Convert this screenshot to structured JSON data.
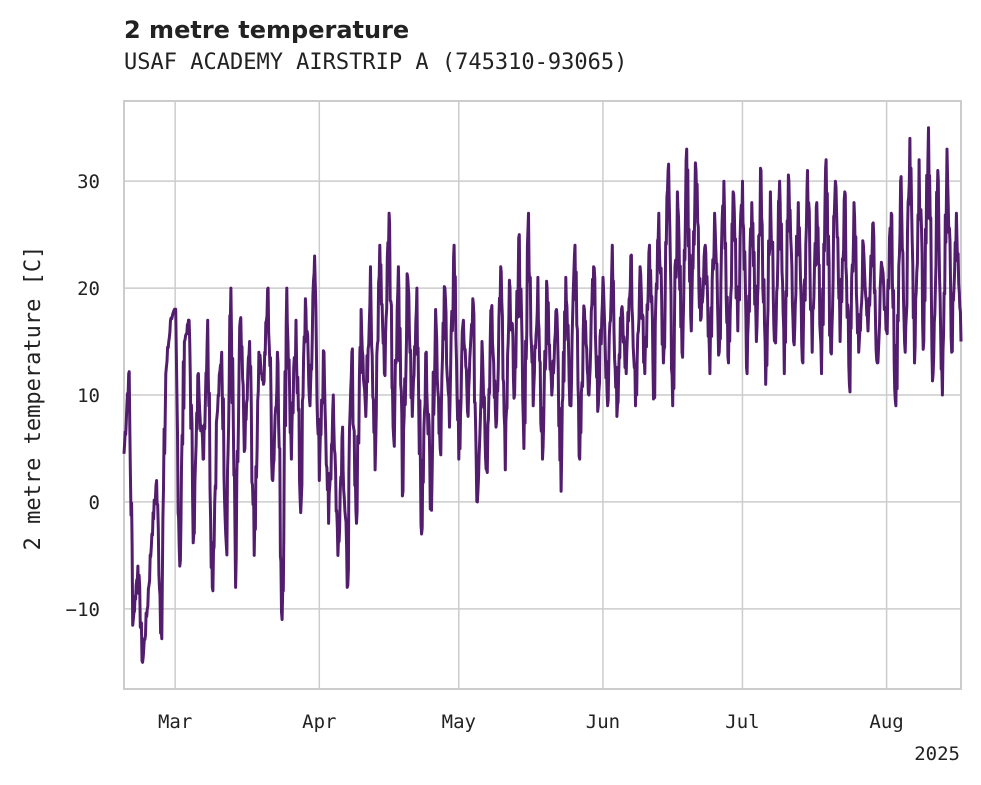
{
  "header": {
    "title": "2 metre temperature",
    "subtitle": "USAF ACADEMY AIRSTRIP A (745310-93065)"
  },
  "colors": {
    "series": "#531d6e",
    "grid": "#cccccc",
    "axis": "#cccccc"
  },
  "chart_data": {
    "type": "line",
    "title": "2 metre temperature",
    "subtitle": "USAF ACADEMY AIRSTRIP A (745310-93065)",
    "xlabel": "",
    "ylabel": "2 metre temperature [C]",
    "x_range": [
      "2025-02-18",
      "2025-08-17"
    ],
    "ylim": [
      -17.5,
      37.5
    ],
    "grid": true,
    "x_ticks": [
      {
        "date": "2025-03-01",
        "label": "Mar"
      },
      {
        "date": "2025-04-01",
        "label": "Apr"
      },
      {
        "date": "2025-05-01",
        "label": "May"
      },
      {
        "date": "2025-06-01",
        "label": "Jun"
      },
      {
        "date": "2025-07-01",
        "label": "Jul"
      },
      {
        "date": "2025-08-01",
        "label": "Aug"
      }
    ],
    "x_offset_label": "2025",
    "y_ticks": [
      -10,
      0,
      10,
      20,
      30
    ],
    "series": [
      {
        "resolution": "3-hourly",
        "points": [
          [
            "2025-02-18",
            4.5
          ],
          [
            "2025-02-19",
            12
          ],
          [
            "2025-02-20",
            -11
          ],
          [
            "2025-02-21",
            -6
          ],
          [
            "2025-02-22",
            -15
          ],
          [
            "2025-02-23",
            -10
          ],
          [
            "2025-02-24",
            -3
          ],
          [
            "2025-02-25",
            2
          ],
          [
            "2025-02-26",
            -12
          ],
          [
            "2025-02-27",
            12
          ],
          [
            "2025-02-28",
            17
          ],
          [
            "2025-03-01",
            18
          ],
          [
            "2025-03-02",
            -6
          ],
          [
            "2025-03-03",
            15
          ],
          [
            "2025-03-04",
            17
          ],
          [
            "2025-03-05",
            -3
          ],
          [
            "2025-03-06",
            12
          ],
          [
            "2025-03-07",
            4
          ],
          [
            "2025-03-08",
            17
          ],
          [
            "2025-03-09",
            -8
          ],
          [
            "2025-03-10",
            8
          ],
          [
            "2025-03-11",
            14
          ],
          [
            "2025-03-12",
            -4
          ],
          [
            "2025-03-13",
            20
          ],
          [
            "2025-03-14",
            -8
          ],
          [
            "2025-03-15",
            17
          ],
          [
            "2025-03-16",
            5
          ],
          [
            "2025-03-17",
            15
          ],
          [
            "2025-03-18",
            -5
          ],
          [
            "2025-03-19",
            14
          ],
          [
            "2025-03-20",
            11
          ],
          [
            "2025-03-21",
            20
          ],
          [
            "2025-03-22",
            2
          ],
          [
            "2025-03-23",
            14
          ],
          [
            "2025-03-24",
            -11
          ],
          [
            "2025-03-25",
            20
          ],
          [
            "2025-03-26",
            4
          ],
          [
            "2025-03-27",
            17
          ],
          [
            "2025-03-28",
            -1
          ],
          [
            "2025-03-29",
            19
          ],
          [
            "2025-03-30",
            9
          ],
          [
            "2025-03-31",
            23
          ],
          [
            "2025-04-01",
            2
          ],
          [
            "2025-04-02",
            14
          ],
          [
            "2025-04-03",
            -2
          ],
          [
            "2025-04-04",
            10
          ],
          [
            "2025-04-05",
            -5
          ],
          [
            "2025-04-06",
            7
          ],
          [
            "2025-04-07",
            -8
          ],
          [
            "2025-04-08",
            14
          ],
          [
            "2025-04-09",
            -2
          ],
          [
            "2025-04-10",
            18
          ],
          [
            "2025-04-11",
            8
          ],
          [
            "2025-04-12",
            22
          ],
          [
            "2025-04-13",
            3
          ],
          [
            "2025-04-14",
            24
          ],
          [
            "2025-04-15",
            12
          ],
          [
            "2025-04-16",
            27
          ],
          [
            "2025-04-17",
            6
          ],
          [
            "2025-04-18",
            22
          ],
          [
            "2025-04-19",
            1
          ],
          [
            "2025-04-20",
            21
          ],
          [
            "2025-04-21",
            8
          ],
          [
            "2025-04-22",
            20
          ],
          [
            "2025-04-23",
            -3
          ],
          [
            "2025-04-24",
            14
          ],
          [
            "2025-04-25",
            0
          ],
          [
            "2025-04-26",
            18
          ],
          [
            "2025-04-27",
            5
          ],
          [
            "2025-04-28",
            20
          ],
          [
            "2025-04-29",
            7
          ],
          [
            "2025-04-30",
            24
          ],
          [
            "2025-05-01",
            4
          ],
          [
            "2025-05-02",
            17
          ],
          [
            "2025-05-03",
            8
          ],
          [
            "2025-05-04",
            19
          ],
          [
            "2025-05-05",
            0
          ],
          [
            "2025-05-06",
            15
          ],
          [
            "2025-05-07",
            3
          ],
          [
            "2025-05-08",
            18
          ],
          [
            "2025-05-09",
            7
          ],
          [
            "2025-05-10",
            22
          ],
          [
            "2025-05-11",
            3
          ],
          [
            "2025-05-12",
            20
          ],
          [
            "2025-05-13",
            10
          ],
          [
            "2025-05-14",
            25
          ],
          [
            "2025-05-15",
            5
          ],
          [
            "2025-05-16",
            27
          ],
          [
            "2025-05-17",
            9
          ],
          [
            "2025-05-18",
            21
          ],
          [
            "2025-05-19",
            4
          ],
          [
            "2025-05-20",
            20
          ],
          [
            "2025-05-21",
            10
          ],
          [
            "2025-05-22",
            18
          ],
          [
            "2025-05-23",
            1
          ],
          [
            "2025-05-24",
            21
          ],
          [
            "2025-05-25",
            9
          ],
          [
            "2025-05-26",
            24
          ],
          [
            "2025-05-27",
            4
          ],
          [
            "2025-05-28",
            18
          ],
          [
            "2025-05-29",
            10
          ],
          [
            "2025-05-30",
            22
          ],
          [
            "2025-05-31",
            9
          ],
          [
            "2025-06-01",
            21
          ],
          [
            "2025-06-02",
            9
          ],
          [
            "2025-06-03",
            24
          ],
          [
            "2025-06-04",
            8
          ],
          [
            "2025-06-05",
            18
          ],
          [
            "2025-06-06",
            12
          ],
          [
            "2025-06-07",
            23
          ],
          [
            "2025-06-08",
            9
          ],
          [
            "2025-06-09",
            22
          ],
          [
            "2025-06-10",
            12
          ],
          [
            "2025-06-11",
            24
          ],
          [
            "2025-06-12",
            10
          ],
          [
            "2025-06-13",
            27
          ],
          [
            "2025-06-14",
            13
          ],
          [
            "2025-06-15",
            31
          ],
          [
            "2025-06-16",
            9
          ],
          [
            "2025-06-17",
            29
          ],
          [
            "2025-06-18",
            14
          ],
          [
            "2025-06-19",
            33
          ],
          [
            "2025-06-20",
            16
          ],
          [
            "2025-06-21",
            31
          ],
          [
            "2025-06-22",
            17
          ],
          [
            "2025-06-23",
            24
          ],
          [
            "2025-06-24",
            12
          ],
          [
            "2025-06-25",
            27
          ],
          [
            "2025-06-26",
            14
          ],
          [
            "2025-06-27",
            30
          ],
          [
            "2025-06-28",
            13
          ],
          [
            "2025-06-29",
            29
          ],
          [
            "2025-06-30",
            16
          ],
          [
            "2025-07-01",
            30
          ],
          [
            "2025-07-02",
            12
          ],
          [
            "2025-07-03",
            28
          ],
          [
            "2025-07-04",
            15
          ],
          [
            "2025-07-05",
            31
          ],
          [
            "2025-07-06",
            11
          ],
          [
            "2025-07-07",
            29
          ],
          [
            "2025-07-08",
            15
          ],
          [
            "2025-07-09",
            30
          ],
          [
            "2025-07-10",
            12
          ],
          [
            "2025-07-11",
            30
          ],
          [
            "2025-07-12",
            15
          ],
          [
            "2025-07-13",
            28
          ],
          [
            "2025-07-14",
            13
          ],
          [
            "2025-07-15",
            31
          ],
          [
            "2025-07-16",
            14
          ],
          [
            "2025-07-17",
            28
          ],
          [
            "2025-07-18",
            12
          ],
          [
            "2025-07-19",
            32
          ],
          [
            "2025-07-20",
            14
          ],
          [
            "2025-07-21",
            30
          ],
          [
            "2025-07-22",
            15
          ],
          [
            "2025-07-23",
            29
          ],
          [
            "2025-07-24",
            11
          ],
          [
            "2025-07-25",
            28
          ],
          [
            "2025-07-26",
            14
          ],
          [
            "2025-07-27",
            24
          ],
          [
            "2025-07-28",
            16
          ],
          [
            "2025-07-29",
            26
          ],
          [
            "2025-07-30",
            13
          ],
          [
            "2025-07-31",
            22
          ],
          [
            "2025-08-01",
            16
          ],
          [
            "2025-08-02",
            27
          ],
          [
            "2025-08-03",
            9
          ],
          [
            "2025-08-04",
            30
          ],
          [
            "2025-08-05",
            14
          ],
          [
            "2025-08-06",
            34
          ],
          [
            "2025-08-07",
            13
          ],
          [
            "2025-08-08",
            32
          ],
          [
            "2025-08-09",
            15
          ],
          [
            "2025-08-10",
            35
          ],
          [
            "2025-08-11",
            12
          ],
          [
            "2025-08-12",
            31
          ],
          [
            "2025-08-13",
            10
          ],
          [
            "2025-08-14",
            33
          ],
          [
            "2025-08-15",
            14
          ],
          [
            "2025-08-16",
            27
          ],
          [
            "2025-08-17",
            15
          ]
        ]
      }
    ]
  }
}
